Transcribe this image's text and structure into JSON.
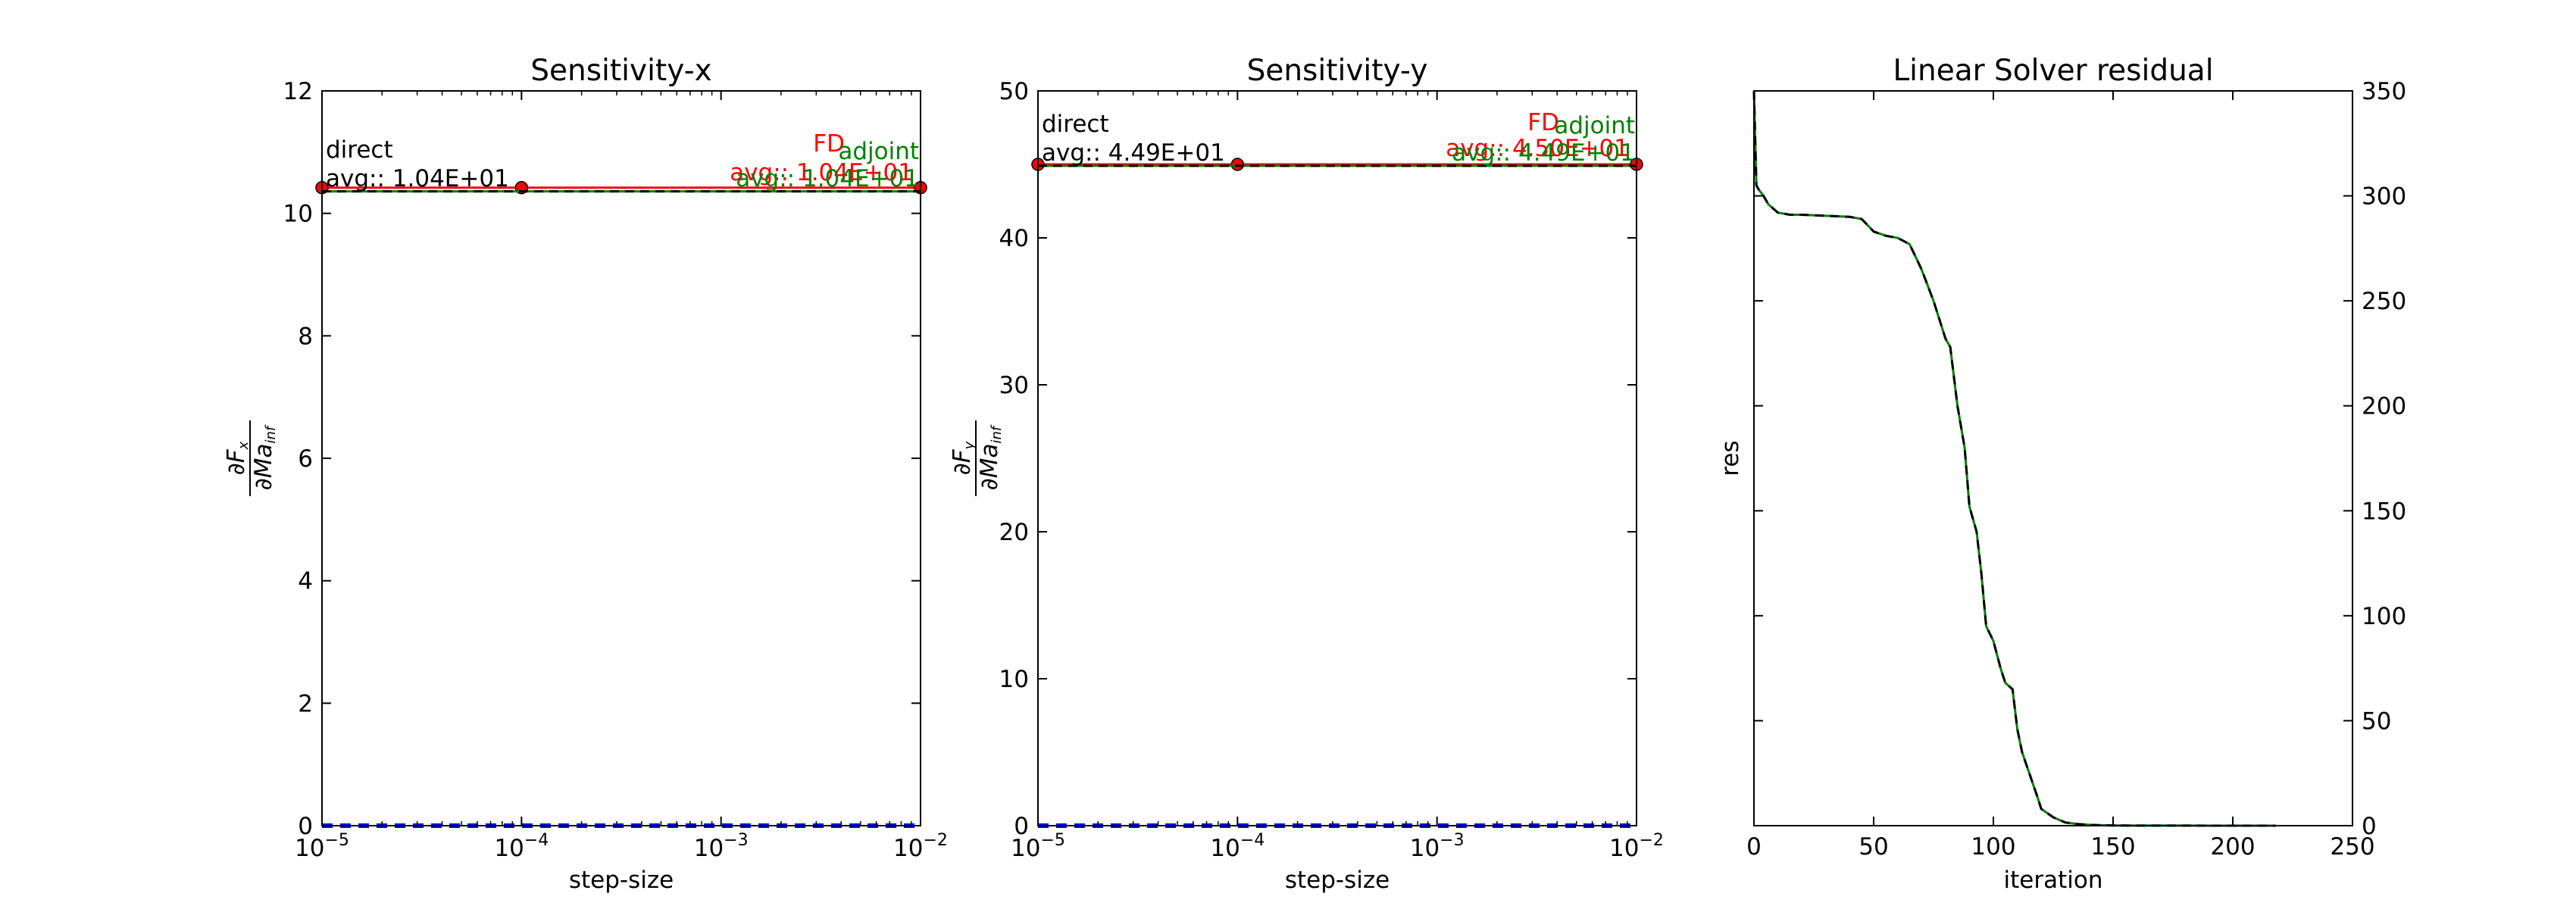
{
  "chart_data": [
    {
      "type": "line",
      "title": "Sensitivity-x",
      "xlabel": "step-size",
      "ylabel": "∂F_x / ∂Ma_inf",
      "xscale": "log",
      "xlim": [
        1e-05,
        0.01
      ],
      "ylim": [
        0,
        12
      ],
      "xtick_labels": [
        {
          "base": "10",
          "exp": "−5"
        },
        {
          "base": "10",
          "exp": "−4"
        },
        {
          "base": "10",
          "exp": "−3"
        },
        {
          "base": "10",
          "exp": "−2"
        }
      ],
      "ytick_labels": [
        "0",
        "2",
        "4",
        "6",
        "8",
        "10",
        "12"
      ],
      "yticks": [
        0,
        2,
        4,
        6,
        8,
        10,
        12
      ],
      "series": [
        {
          "name": "FD",
          "color": "#ff0000",
          "style": "solid",
          "marker": "circle",
          "x": [
            1e-05,
            0.0001,
            0.01
          ],
          "y": [
            10.42,
            10.42,
            10.42
          ]
        },
        {
          "name": "adjoint",
          "color": "#008000",
          "style": "solid",
          "x": [
            1e-05,
            0.01
          ],
          "y": [
            10.36,
            10.36
          ]
        },
        {
          "name": "direct",
          "color": "#000000",
          "style": "dashed",
          "x": [
            1e-05,
            0.01
          ],
          "y": [
            10.36,
            10.36
          ]
        },
        {
          "color": "#0000ff",
          "style": "dashed",
          "x": [
            1e-05,
            0.01
          ],
          "y": [
            0,
            0
          ]
        }
      ],
      "annotations": {
        "direct_name": "direct",
        "direct_avg": "avg:: 1.04E+01",
        "fd_name": "FD",
        "fd_avg": "avg:: 1.04E+01",
        "adjoint_name": "adjoint",
        "adjoint_avg": "avg:: 1.04E+01"
      }
    },
    {
      "type": "line",
      "title": "Sensitivity-y",
      "xlabel": "step-size",
      "ylabel": "∂F_y / ∂Ma_inf",
      "xscale": "log",
      "xlim": [
        1e-05,
        0.01
      ],
      "ylim": [
        0,
        50
      ],
      "xtick_labels": [
        {
          "base": "10",
          "exp": "−5"
        },
        {
          "base": "10",
          "exp": "−4"
        },
        {
          "base": "10",
          "exp": "−3"
        },
        {
          "base": "10",
          "exp": "−2"
        }
      ],
      "ytick_labels": [
        "0",
        "10",
        "20",
        "30",
        "40",
        "50"
      ],
      "yticks": [
        0,
        10,
        20,
        30,
        40,
        50
      ],
      "series": [
        {
          "name": "FD",
          "color": "#ff0000",
          "style": "solid",
          "marker": "circle",
          "x": [
            1e-05,
            0.0001,
            0.01
          ],
          "y": [
            45.0,
            45.0,
            45.0
          ]
        },
        {
          "name": "adjoint",
          "color": "#008000",
          "style": "solid",
          "x": [
            1e-05,
            0.01
          ],
          "y": [
            44.9,
            44.9
          ]
        },
        {
          "name": "direct",
          "color": "#000000",
          "style": "dashed",
          "x": [
            1e-05,
            0.01
          ],
          "y": [
            44.9,
            44.9
          ]
        },
        {
          "color": "#0000ff",
          "style": "dashed",
          "x": [
            1e-05,
            0.01
          ],
          "y": [
            0,
            0
          ]
        }
      ],
      "annotations": {
        "direct_name": "direct",
        "direct_avg": "avg:: 4.49E+01",
        "fd_name": "FD",
        "fd_avg": "avg:: 4.50E+01",
        "adjoint_name": "adjoint",
        "adjoint_avg": "avg:: 4.49E+01"
      }
    },
    {
      "type": "line",
      "title": "Linear Solver residual",
      "xlabel": "iteration",
      "ylabel": "res",
      "xlim": [
        0,
        250
      ],
      "ylim": [
        0,
        350
      ],
      "yaxis_side": "right",
      "xticks": [
        0,
        50,
        100,
        150,
        200,
        250
      ],
      "xtick_labels": [
        "0",
        "50",
        "100",
        "150",
        "200",
        "250"
      ],
      "yticks": [
        0,
        50,
        100,
        150,
        200,
        250,
        300,
        350
      ],
      "ytick_labels": [
        "0",
        "50",
        "100",
        "150",
        "200",
        "250",
        "300",
        "350"
      ],
      "series": [
        {
          "color": "#008000",
          "style": "solid",
          "x": [
            0,
            1,
            2,
            4,
            6,
            10,
            15,
            20,
            30,
            40,
            45,
            50,
            55,
            60,
            65,
            70,
            75,
            80,
            82,
            85,
            88,
            90,
            93,
            95,
            97,
            100,
            103,
            105,
            108,
            110,
            112,
            115,
            118,
            120,
            125,
            130,
            135,
            140,
            145,
            150,
            160,
            180,
            200,
            218
          ],
          "y": [
            350,
            305,
            303,
            300,
            296,
            292,
            291,
            291,
            290.5,
            290,
            289,
            283,
            281,
            280,
            277,
            265,
            250,
            232,
            228,
            200,
            180,
            152,
            140,
            120,
            95,
            88,
            75,
            68,
            65,
            46,
            35,
            25,
            15,
            8,
            4,
            1.5,
            0.8,
            0.4,
            0.2,
            0.1,
            0.05,
            0.02,
            0.01,
            0.01
          ]
        },
        {
          "color": "#000000",
          "style": "dashed",
          "x": [
            0,
            1,
            2,
            4,
            6,
            10,
            15,
            20,
            30,
            40,
            45,
            50,
            55,
            60,
            65,
            70,
            75,
            80,
            82,
            85,
            88,
            90,
            93,
            95,
            97,
            100,
            103,
            105,
            108,
            110,
            112,
            115,
            118,
            120,
            125,
            130,
            135,
            140,
            145,
            150,
            160,
            180,
            200,
            218
          ],
          "y": [
            350,
            305,
            303,
            300,
            296,
            292,
            291,
            291,
            290.5,
            290,
            289,
            283,
            281,
            280,
            277,
            265,
            250,
            232,
            228,
            200,
            180,
            152,
            140,
            120,
            95,
            88,
            75,
            68,
            65,
            46,
            35,
            25,
            15,
            8,
            4,
            1.5,
            0.8,
            0.4,
            0.2,
            0.1,
            0.05,
            0.02,
            0.01,
            0.01
          ]
        }
      ]
    }
  ]
}
